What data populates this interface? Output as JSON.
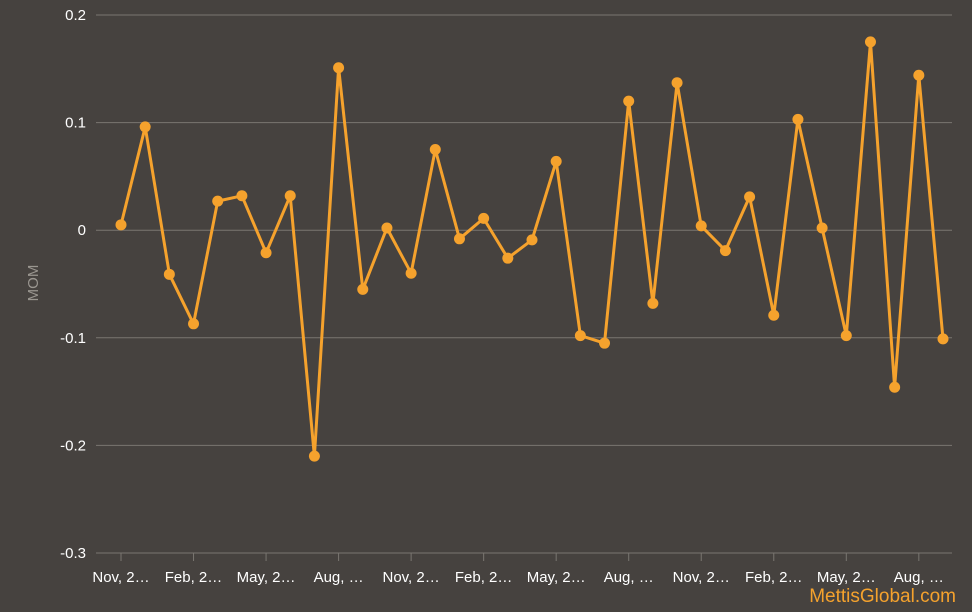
{
  "chart_data": {
    "type": "line",
    "title": "",
    "xlabel": "",
    "ylabel": "MOM",
    "ylim": [
      -0.3,
      0.2
    ],
    "y_ticks": [
      {
        "value": 0.2,
        "label": "0.2"
      },
      {
        "value": 0.1,
        "label": "0.1"
      },
      {
        "value": 0,
        "label": "0"
      },
      {
        "value": -0.1,
        "label": "-0.1"
      },
      {
        "value": -0.2,
        "label": "-0.2"
      },
      {
        "value": -0.3,
        "label": "-0.3"
      }
    ],
    "x_tick_labels": [
      "Nov, 2…",
      "Feb, 2…",
      "May, 2…",
      "Aug, …",
      "Nov, 2…",
      "Feb, 2…",
      "May, 2…",
      "Aug, …",
      "Nov, 2…",
      "Feb, 2…",
      "May, 2…",
      "Aug, …"
    ],
    "grid": true,
    "legend": "none",
    "series": [
      {
        "color": "#f5a22d",
        "values": [
          0.005,
          0.096,
          -0.041,
          -0.087,
          0.027,
          0.032,
          -0.021,
          0.032,
          -0.21,
          0.151,
          -0.055,
          0.002,
          -0.04,
          0.075,
          -0.008,
          0.011,
          -0.026,
          -0.009,
          0.064,
          -0.098,
          -0.105,
          0.12,
          -0.068,
          0.137,
          0.004,
          -0.019,
          0.031,
          -0.079,
          0.103,
          0.002,
          -0.098,
          0.175,
          -0.146,
          0.144,
          -0.101
        ]
      }
    ]
  },
  "colors": {
    "background": "#46423f",
    "grid": "#7a7671",
    "line": "#f5a22d",
    "tick_text": "#ffffff",
    "axis_title": "#9a9690",
    "watermark": "#f5a22d"
  },
  "watermark": "MettisGlobal.com"
}
